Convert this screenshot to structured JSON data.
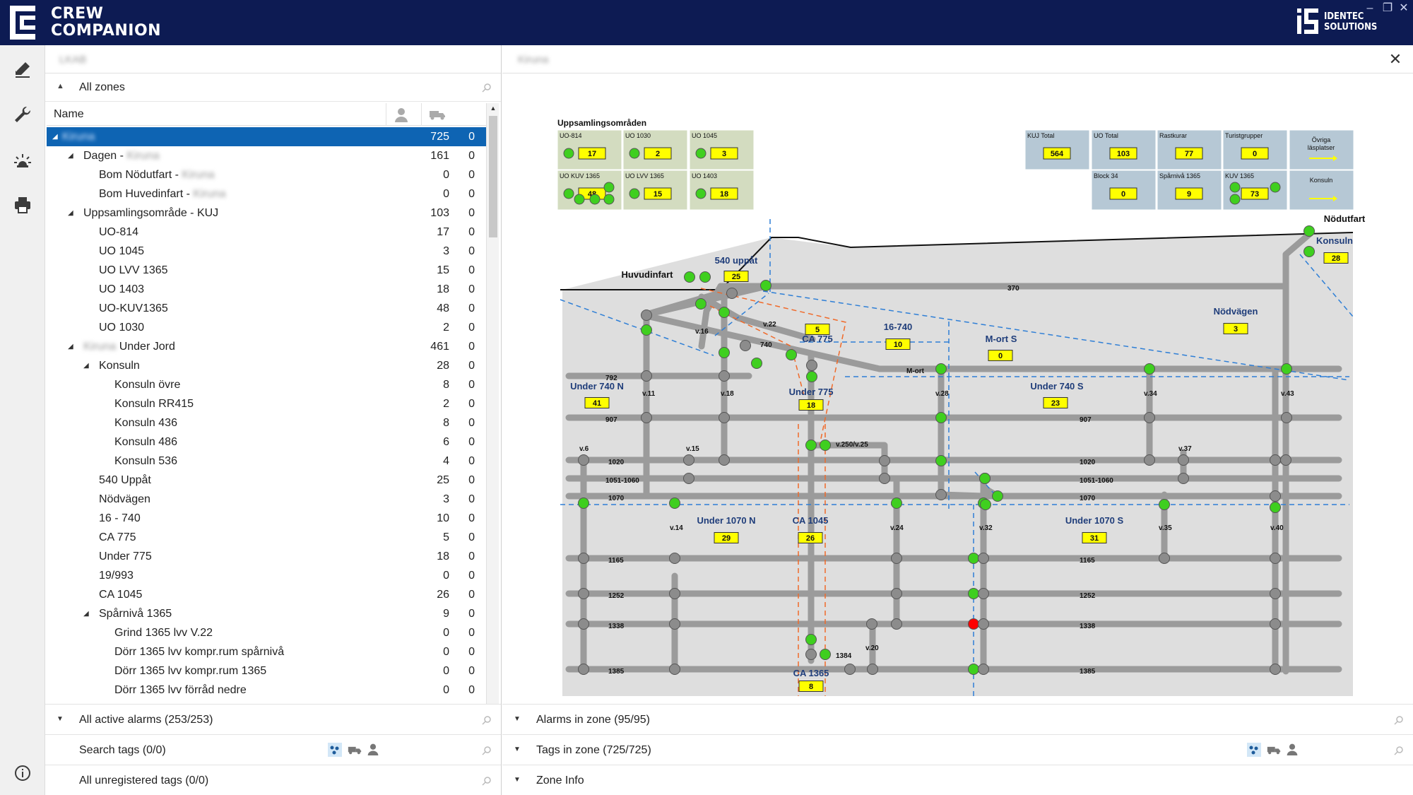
{
  "app": {
    "title_line1": "CREW",
    "title_line2": "COMPANION",
    "vendor_line1": "IDENTEC",
    "vendor_line2": "SOLUTIONS"
  },
  "window_controls": [
    "minimize",
    "restore",
    "close"
  ],
  "rail": {
    "icons": [
      "pencil-icon",
      "wrench-icon",
      "siren-icon",
      "printer-icon",
      "info-icon"
    ]
  },
  "left": {
    "header": "LKAB",
    "zones_label": "All zones",
    "column_name": "Name",
    "tree": [
      {
        "label": "Kiruna",
        "blur": true,
        "people": "725",
        "vehicles": "0",
        "level": 0,
        "expanded": true,
        "selected": true
      },
      {
        "label": "Dagen - ",
        "suffix": "Kiruna",
        "people": "161",
        "vehicles": "0",
        "level": 1,
        "expanded": true
      },
      {
        "label": "Bom Nödutfart - ",
        "suffix": "Kiruna",
        "people": "0",
        "vehicles": "0",
        "level": 2
      },
      {
        "label": "Bom Huvedinfart - ",
        "suffix": "Kiruna",
        "people": "0",
        "vehicles": "0",
        "level": 2
      },
      {
        "label": "Uppsamlingsområde - KUJ",
        "people": "103",
        "vehicles": "0",
        "level": 1,
        "expanded": true
      },
      {
        "label": "UO-814",
        "people": "17",
        "vehicles": "0",
        "level": 2
      },
      {
        "label": "UO 1045",
        "people": "3",
        "vehicles": "0",
        "level": 2
      },
      {
        "label": "UO LVV 1365",
        "people": "15",
        "vehicles": "0",
        "level": 2
      },
      {
        "label": "UO 1403",
        "people": "18",
        "vehicles": "0",
        "level": 2
      },
      {
        "label": "UO-KUV1365",
        "people": "48",
        "vehicles": "0",
        "level": 2
      },
      {
        "label": "UO 1030",
        "people": "2",
        "vehicles": "0",
        "level": 2
      },
      {
        "label": "Under Jord",
        "prefix": "Kiruna",
        "people": "461",
        "vehicles": "0",
        "level": 1,
        "expanded": true
      },
      {
        "label": "Konsuln",
        "people": "28",
        "vehicles": "0",
        "level": 2,
        "expanded": true
      },
      {
        "label": "Konsuln övre",
        "people": "8",
        "vehicles": "0",
        "level": 3
      },
      {
        "label": "Konsuln RR415",
        "people": "2",
        "vehicles": "0",
        "level": 3
      },
      {
        "label": "Konsuln 436",
        "people": "8",
        "vehicles": "0",
        "level": 3
      },
      {
        "label": "Konsuln 486",
        "people": "6",
        "vehicles": "0",
        "level": 3
      },
      {
        "label": "Konsuln 536",
        "people": "4",
        "vehicles": "0",
        "level": 3
      },
      {
        "label": "540 Uppåt",
        "people": "25",
        "vehicles": "0",
        "level": 2
      },
      {
        "label": "Nödvägen",
        "people": "3",
        "vehicles": "0",
        "level": 2
      },
      {
        "label": "16 - 740",
        "people": "10",
        "vehicles": "0",
        "level": 2
      },
      {
        "label": "CA 775",
        "people": "5",
        "vehicles": "0",
        "level": 2
      },
      {
        "label": "Under 775",
        "people": "18",
        "vehicles": "0",
        "level": 2
      },
      {
        "label": "19/993",
        "people": "0",
        "vehicles": "0",
        "level": 2
      },
      {
        "label": "CA 1045",
        "people": "26",
        "vehicles": "0",
        "level": 2
      },
      {
        "label": "Spårnivå 1365",
        "people": "9",
        "vehicles": "0",
        "level": 2,
        "expanded": true
      },
      {
        "label": "Grind 1365 lvv V.22",
        "people": "0",
        "vehicles": "0",
        "level": 3
      },
      {
        "label": "Dörr 1365 lvv kompr.rum spårnivå",
        "people": "0",
        "vehicles": "0",
        "level": 3
      },
      {
        "label": "Dörr 1365 lvv kompr.rum 1365",
        "people": "0",
        "vehicles": "0",
        "level": 3
      },
      {
        "label": "Dörr 1365 lvv förråd nedre",
        "people": "0",
        "vehicles": "0",
        "level": 3
      }
    ],
    "bottom": {
      "alarms": "All active alarms (253/253)",
      "search": "Search tags (0/0)",
      "unregistered": "All unregistered tags (0/0)"
    }
  },
  "right": {
    "header": "Kiruna",
    "bottom": {
      "alarms": "Alarms in zone (95/95)",
      "tags": "Tags in zone (725/725)",
      "info": "Zone Info"
    },
    "map": {
      "uppsamling_title": "Uppsamlingsområden",
      "uo_boxes": [
        {
          "label": "UO-814",
          "value": "17"
        },
        {
          "label": "UO 1030",
          "value": "2"
        },
        {
          "label": "UO 1045",
          "value": "3"
        },
        {
          "label": "UO KUV 1365",
          "value": "48"
        },
        {
          "label": "UO LVV 1365",
          "value": "15"
        },
        {
          "label": "UO 1403",
          "value": "18"
        }
      ],
      "summary_boxes": [
        {
          "label": "KUJ Total",
          "value": "564"
        },
        {
          "label": "UO Total",
          "value": "103"
        },
        {
          "label": "Rastkurar",
          "value": "77"
        },
        {
          "label": "Turistgrupper",
          "value": "0"
        },
        {
          "label": "Övriga läsplatser",
          "value": ""
        },
        {
          "label": "Block 34",
          "value": "0"
        },
        {
          "label": "Spårnivå 1365",
          "value": "9"
        },
        {
          "label": "KUV 1365",
          "value": "73"
        },
        {
          "label": "Konsuln",
          "value": ""
        }
      ],
      "zones": [
        {
          "name": "540 uppåt",
          "value": "25"
        },
        {
          "name": "Huvudinfart",
          "value": ""
        },
        {
          "name": "Nödutfart",
          "value": ""
        },
        {
          "name": "Konsuln",
          "value": "28"
        },
        {
          "name": "Nödvägen",
          "value": "3"
        },
        {
          "name": "16-740",
          "value": "10"
        },
        {
          "name": "M-ort S",
          "value": "0"
        },
        {
          "name": "CA 775",
          "value": "5"
        },
        {
          "name": "Under 740 N",
          "value": "41"
        },
        {
          "name": "Under 775",
          "value": "18"
        },
        {
          "name": "Under 740 S",
          "value": "23"
        },
        {
          "name": "Under 1070 N",
          "value": "29"
        },
        {
          "name": "CA 1045",
          "value": "26"
        },
        {
          "name": "Under 1070 S",
          "value": "31"
        },
        {
          "name": "CA 1365",
          "value": "8"
        }
      ],
      "level_labels": [
        "370",
        "792",
        "M-ort",
        "907",
        "1020",
        "1051-1060",
        "1070",
        "1165",
        "1252",
        "1338",
        "1384",
        "1385"
      ],
      "shaft_labels": [
        "v.16",
        "v.22",
        "740",
        "v.11",
        "v.18",
        "v.28",
        "v.34",
        "v.43",
        "v.6",
        "v.15",
        "v.250/v.25",
        "v.37",
        "v.14",
        "v.24",
        "v.32",
        "v.35",
        "v.40",
        "v.20"
      ],
      "colors": {
        "box_green": "#d3dcc0",
        "box_blue": "#b6c8d5",
        "badge": "#ffff00",
        "node_ok": "#3fcf1f",
        "node_idle": "#8c8c8c",
        "node_alarm": "#ff0000",
        "zone_text": "#1f3d7a"
      }
    }
  }
}
